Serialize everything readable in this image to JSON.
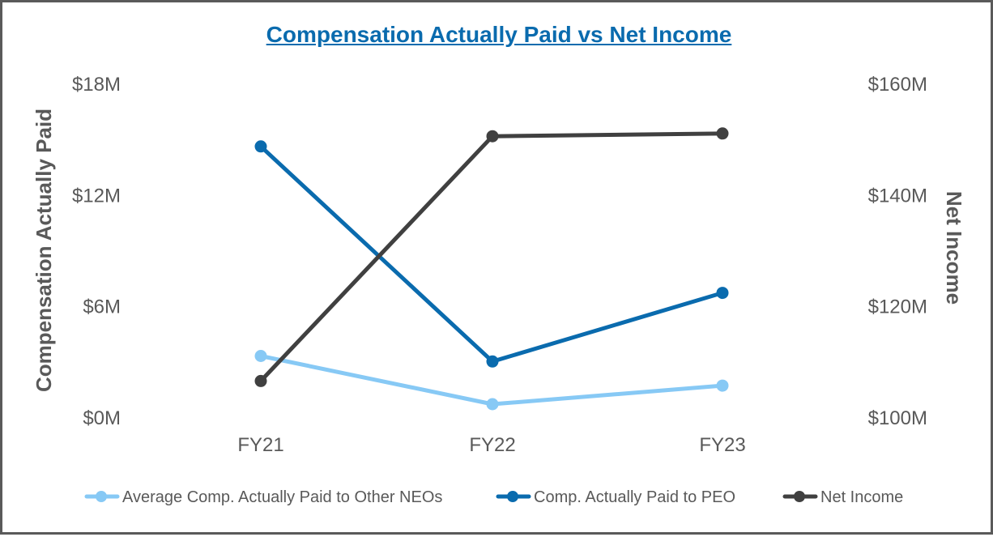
{
  "colors": {
    "title": "#0a6bae",
    "avg_neo": "#87c9f5",
    "peo": "#0a6bae",
    "net_income": "#404040",
    "text": "#595959"
  },
  "chart_data": {
    "type": "line",
    "title": "Compensation Actually Paid vs Net Income",
    "categories": [
      "FY21",
      "FY22",
      "FY23"
    ],
    "ylabel_left": "Compensation Actually Paid",
    "ylabel_right": "Net Income",
    "ylim_left": [
      0,
      18
    ],
    "ylim_right": [
      100,
      160
    ],
    "yticks_left": [
      0,
      6,
      12,
      18
    ],
    "yticks_right": [
      100,
      120,
      140,
      160
    ],
    "ytick_labels_left": [
      "$0M",
      "$6M",
      "$12M",
      "$18M"
    ],
    "ytick_labels_right": [
      "$100M",
      "$120M",
      "$140M",
      "$160M"
    ],
    "grid": false,
    "legend_position": "bottom",
    "series": [
      {
        "key": "avg_neo",
        "name": "Average Comp. Actually Paid to Other NEOs",
        "axis": "left",
        "values": [
          3.3,
          0.7,
          1.7
        ]
      },
      {
        "key": "peo",
        "name": "Comp. Actually Paid to PEO",
        "axis": "left",
        "values": [
          14.6,
          3.0,
          6.7
        ]
      },
      {
        "key": "net_income",
        "name": "Net Income",
        "axis": "right",
        "values": [
          106.5,
          150.5,
          151.0
        ]
      }
    ]
  }
}
